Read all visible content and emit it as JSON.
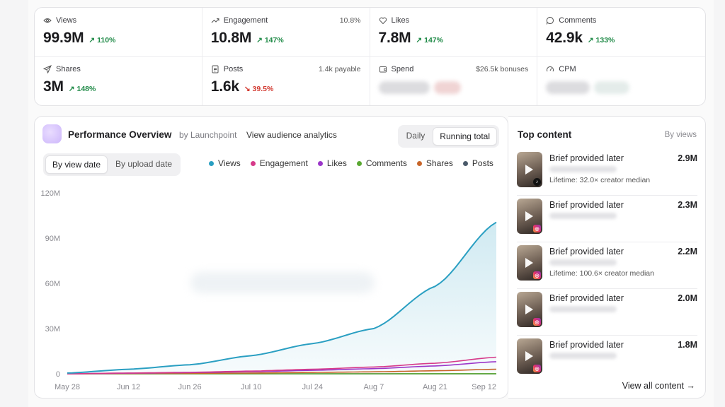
{
  "metrics": [
    {
      "label": "Views",
      "icon": "eye-icon",
      "value": "99.9M",
      "change": "↗ 110%",
      "direction": "up",
      "extra": ""
    },
    {
      "label": "Engagement",
      "icon": "trend-up-icon",
      "value": "10.8M",
      "change": "↗ 147%",
      "direction": "up",
      "extra": "10.8%"
    },
    {
      "label": "Likes",
      "icon": "heart-icon",
      "value": "7.8M",
      "change": "↗ 147%",
      "direction": "up",
      "extra": ""
    },
    {
      "label": "Comments",
      "icon": "chat-bubble-icon",
      "value": "42.9k",
      "change": "↗ 133%",
      "direction": "up",
      "extra": ""
    },
    {
      "label": "Shares",
      "icon": "send-icon",
      "value": "3M",
      "change": "↗ 148%",
      "direction": "up",
      "extra": ""
    },
    {
      "label": "Posts",
      "icon": "document-icon",
      "value": "1.6k",
      "change": "↘ 39.5%",
      "direction": "down",
      "extra": "1.4k payable"
    },
    {
      "label": "Spend",
      "icon": "wallet-icon",
      "value": "",
      "change": "",
      "direction": "",
      "extra": "$26.5k bonuses"
    },
    {
      "label": "CPM",
      "icon": "gauge-icon",
      "value": "",
      "change": "",
      "direction": "",
      "extra": ""
    }
  ],
  "overview": {
    "title": "Performance Overview",
    "by": "by Launchpoint",
    "link": "View audience analytics",
    "time_toggle": [
      "Daily",
      "Running total"
    ],
    "time_active": 1,
    "date_toggle": [
      "By view date",
      "By upload date"
    ],
    "date_active": 0
  },
  "colors": {
    "Views": "#2a9fc2",
    "Engagement": "#d63a8a",
    "Likes": "#9b36c9",
    "Comments": "#5aa832",
    "Shares": "#c8652a",
    "Posts": "#4a5a6a"
  },
  "chart_data": {
    "type": "line",
    "x": [
      "May 28",
      "Jun 12",
      "Jun 26",
      "Jul 10",
      "Jul 24",
      "Aug 7",
      "Aug 21",
      "Sep 12"
    ],
    "ylim": [
      0,
      120
    ],
    "yticks": [
      "0",
      "30M",
      "60M",
      "90M",
      "120M"
    ],
    "series": [
      {
        "name": "Views",
        "values": [
          0.5,
          3,
          6,
          12,
          20,
          30,
          58,
          100.5
        ]
      },
      {
        "name": "Engagement",
        "values": [
          0,
          0.5,
          1,
          1.8,
          3,
          4.5,
          7,
          11
        ]
      },
      {
        "name": "Likes",
        "values": [
          0,
          0.4,
          0.8,
          1.4,
          2.3,
          3.4,
          5.2,
          8
        ]
      },
      {
        "name": "Comments",
        "values": [
          0,
          0,
          0,
          0,
          0,
          0.02,
          0.03,
          0.04
        ]
      },
      {
        "name": "Shares",
        "values": [
          0,
          0.2,
          0.3,
          0.5,
          0.9,
          1.3,
          2,
          3
        ]
      },
      {
        "name": "Posts",
        "values": [
          0,
          0,
          0,
          0,
          0,
          0,
          0,
          0
        ]
      }
    ],
    "legend": "top-right",
    "grid": false
  },
  "top": {
    "title": "Top content",
    "by": "By views",
    "view_all": "View all content →",
    "items": [
      {
        "name": "Brief provided later",
        "value": "2.9M",
        "sub": "Lifetime: 32.0× creator median",
        "platform": "tiktok"
      },
      {
        "name": "Brief provided later",
        "value": "2.3M",
        "sub": "",
        "platform": "instagram"
      },
      {
        "name": "Brief provided later",
        "value": "2.2M",
        "sub": "Lifetime: 100.6× creator median",
        "platform": "instagram"
      },
      {
        "name": "Brief provided later",
        "value": "2.0M",
        "sub": "",
        "platform": "instagram"
      },
      {
        "name": "Brief provided later",
        "value": "1.8M",
        "sub": "",
        "platform": "instagram"
      }
    ]
  }
}
